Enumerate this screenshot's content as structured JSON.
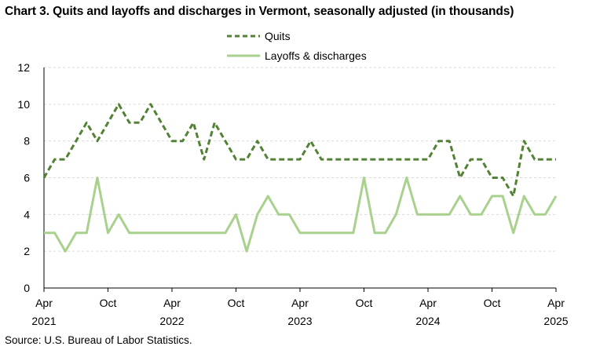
{
  "chart_data": {
    "type": "line",
    "title": "Chart 3. Quits and layoffs and discharges in Vermont, seasonally adjusted (in thousands)",
    "source": "Source: U.S. Bureau of Labor Statistics.",
    "ylim": [
      0,
      12
    ],
    "yticks": [
      "0",
      "2",
      "4",
      "6",
      "8",
      "10",
      "12"
    ],
    "grid": true,
    "legend_position": "top",
    "x_months": [
      "Apr 2021",
      "May 2021",
      "Jun 2021",
      "Jul 2021",
      "Aug 2021",
      "Sep 2021",
      "Oct 2021",
      "Nov 2021",
      "Dec 2021",
      "Jan 2022",
      "Feb 2022",
      "Mar 2022",
      "Apr 2022",
      "May 2022",
      "Jun 2022",
      "Jul 2022",
      "Aug 2022",
      "Sep 2022",
      "Oct 2022",
      "Nov 2022",
      "Dec 2022",
      "Jan 2023",
      "Feb 2023",
      "Mar 2023",
      "Apr 2023",
      "May 2023",
      "Jun 2023",
      "Jul 2023",
      "Aug 2023",
      "Sep 2023",
      "Oct 2023",
      "Nov 2023",
      "Dec 2023",
      "Jan 2024",
      "Feb 2024",
      "Mar 2024",
      "Apr 2024",
      "May 2024",
      "Jun 2024",
      "Jul 2024",
      "Aug 2024",
      "Sep 2024",
      "Oct 2024",
      "Nov 2024",
      "Dec 2024",
      "Jan 2025",
      "Feb 2025",
      "Mar 2025",
      "Apr 2025"
    ],
    "x_tick_labels": [
      {
        "index": 0,
        "month": "Apr",
        "year": "2021"
      },
      {
        "index": 6,
        "month": "Oct",
        "year": ""
      },
      {
        "index": 12,
        "month": "Apr",
        "year": "2022"
      },
      {
        "index": 18,
        "month": "Oct",
        "year": ""
      },
      {
        "index": 24,
        "month": "Apr",
        "year": "2023"
      },
      {
        "index": 30,
        "month": "Oct",
        "year": ""
      },
      {
        "index": 36,
        "month": "Apr",
        "year": "2024"
      },
      {
        "index": 42,
        "month": "Oct",
        "year": ""
      },
      {
        "index": 48,
        "month": "Apr",
        "year": "2025"
      }
    ],
    "series": [
      {
        "name": "Quits",
        "color": "#538135",
        "style": "dashed",
        "values": [
          6,
          7,
          7,
          8,
          9,
          8,
          9,
          10,
          9,
          9,
          10,
          9,
          8,
          8,
          9,
          7,
          9,
          8,
          7,
          7,
          8,
          7,
          7,
          7,
          7,
          8,
          7,
          7,
          7,
          7,
          7,
          7,
          7,
          7,
          7,
          7,
          7,
          8,
          8,
          6,
          7,
          7,
          6,
          6,
          5,
          8,
          7,
          7,
          7
        ]
      },
      {
        "name": "Layoffs & discharges",
        "color": "#a9d18e",
        "style": "solid",
        "values": [
          3,
          3,
          2,
          3,
          3,
          6,
          3,
          4,
          3,
          3,
          3,
          3,
          3,
          3,
          3,
          3,
          3,
          3,
          4,
          2,
          4,
          5,
          4,
          4,
          3,
          3,
          3,
          3,
          3,
          3,
          6,
          3,
          3,
          4,
          6,
          4,
          4,
          4,
          4,
          5,
          4,
          4,
          5,
          5,
          3,
          5,
          4,
          4,
          5
        ]
      }
    ]
  }
}
